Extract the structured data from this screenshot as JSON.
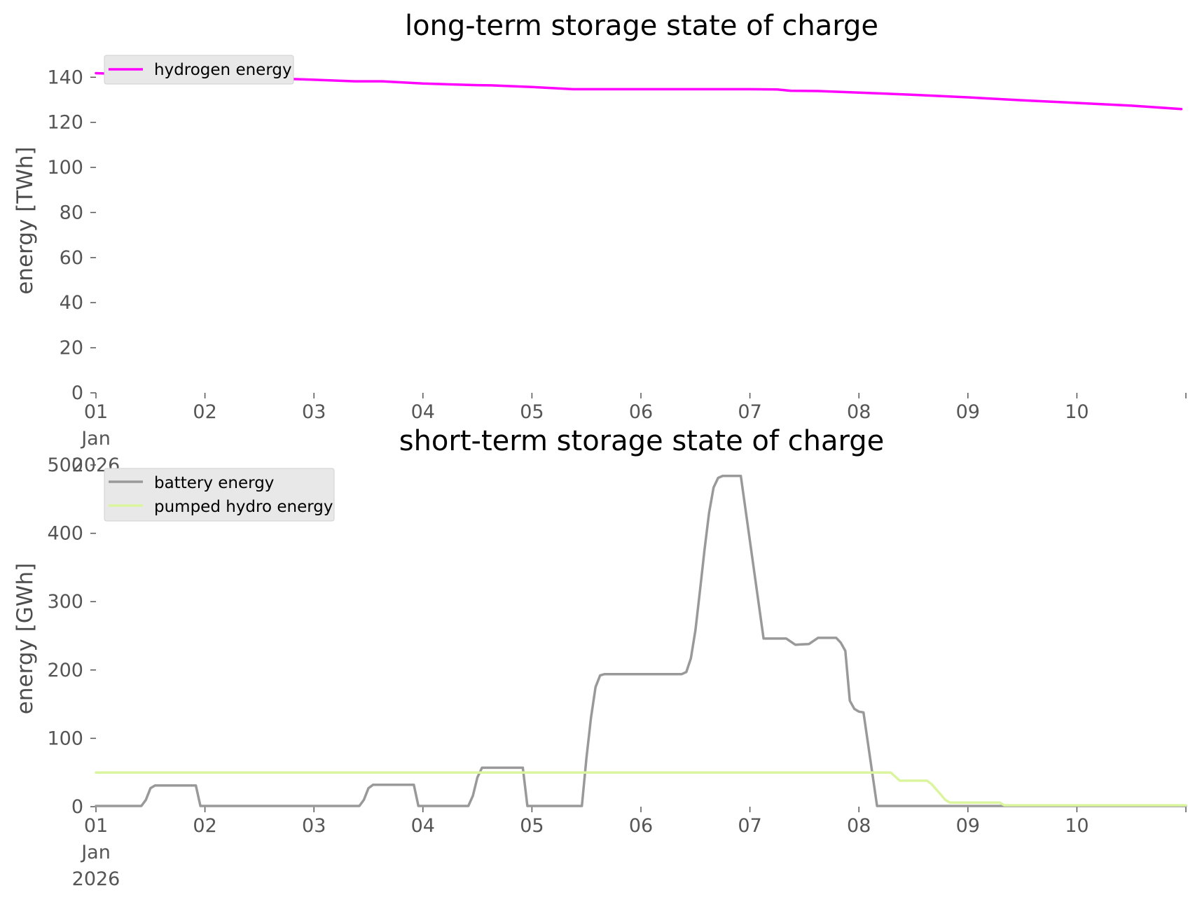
{
  "chart_data": [
    {
      "type": "line",
      "title": "long-term storage state of charge",
      "xlabel": "",
      "ylabel": "energy [TWh]",
      "xlim": [
        "2026-01-01",
        "2026-01-11"
      ],
      "ylim": [
        0,
        146
      ],
      "y_ticks": [
        0,
        20,
        40,
        60,
        80,
        100,
        120,
        140
      ],
      "x_ticks": [
        "2026-01-01",
        "2026-01-02",
        "2026-01-03",
        "2026-01-04",
        "2026-01-05",
        "2026-01-06",
        "2026-01-07",
        "2026-01-08",
        "2026-01-09",
        "2026-01-10",
        "2026-01-11"
      ],
      "x_tick_labels": [
        "01\nJan\n2026",
        "02",
        "03",
        "04",
        "05",
        "06",
        "07",
        "08",
        "09",
        "10",
        ""
      ],
      "grid": false,
      "legend_position": "upper left",
      "series": [
        {
          "name": "hydrogen energy",
          "color": "#ff00ff",
          "points": [
            [
              "2026-01-01 00:00",
              141.8
            ],
            [
              "2026-01-01 12:00",
              141.0
            ],
            [
              "2026-01-02 00:00",
              140.3
            ],
            [
              "2026-01-02 12:00",
              139.7
            ],
            [
              "2026-01-03 00:00",
              138.9
            ],
            [
              "2026-01-03 09:00",
              138.2
            ],
            [
              "2026-01-03 15:00",
              138.2
            ],
            [
              "2026-01-04 00:00",
              137.2
            ],
            [
              "2026-01-04 12:00",
              136.5
            ],
            [
              "2026-01-04 15:00",
              136.4
            ],
            [
              "2026-01-05 00:00",
              135.7
            ],
            [
              "2026-01-05 09:00",
              134.7
            ],
            [
              "2026-01-06 00:00",
              134.7
            ],
            [
              "2026-01-06 12:00",
              134.7
            ],
            [
              "2026-01-07 00:00",
              134.7
            ],
            [
              "2026-01-07 06:00",
              134.6
            ],
            [
              "2026-01-07 09:00",
              134.0
            ],
            [
              "2026-01-07 15:00",
              133.9
            ],
            [
              "2026-01-08 00:00",
              133.2
            ],
            [
              "2026-01-08 12:00",
              132.2
            ],
            [
              "2026-01-09 00:00",
              131.1
            ],
            [
              "2026-01-09 12:00",
              129.8
            ],
            [
              "2026-01-10 00:00",
              128.6
            ],
            [
              "2026-01-10 12:00",
              127.4
            ],
            [
              "2026-01-10 23:00",
              125.9
            ]
          ]
        }
      ]
    },
    {
      "type": "line",
      "title": "short-term storage state of charge",
      "xlabel": "",
      "ylabel": "energy [GWh]",
      "xlim": [
        "2026-01-01",
        "2026-01-11"
      ],
      "ylim": [
        0,
        500
      ],
      "y_ticks": [
        0,
        100,
        200,
        300,
        400,
        500
      ],
      "x_ticks": [
        "2026-01-01",
        "2026-01-02",
        "2026-01-03",
        "2026-01-04",
        "2026-01-05",
        "2026-01-06",
        "2026-01-07",
        "2026-01-08",
        "2026-01-09",
        "2026-01-10",
        "2026-01-11"
      ],
      "x_tick_labels": [
        "01\nJan\n2026",
        "02",
        "03",
        "04",
        "05",
        "06",
        "07",
        "08",
        "09",
        "10",
        ""
      ],
      "grid": false,
      "legend_position": "upper left",
      "series": [
        {
          "name": "battery energy",
          "color": "#999999",
          "points": [
            [
              "2026-01-01 00:00",
              1
            ],
            [
              "2026-01-01 10:00",
              1
            ],
            [
              "2026-01-01 11:00",
              10
            ],
            [
              "2026-01-01 12:00",
              27
            ],
            [
              "2026-01-01 13:00",
              31
            ],
            [
              "2026-01-01 22:00",
              31
            ],
            [
              "2026-01-01 23:00",
              1
            ],
            [
              "2026-01-03 10:00",
              1
            ],
            [
              "2026-01-03 11:00",
              10
            ],
            [
              "2026-01-03 12:00",
              27
            ],
            [
              "2026-01-03 13:00",
              32
            ],
            [
              "2026-01-03 22:00",
              32
            ],
            [
              "2026-01-03 23:00",
              1
            ],
            [
              "2026-01-04 10:00",
              1
            ],
            [
              "2026-01-04 11:00",
              16
            ],
            [
              "2026-01-04 12:00",
              43
            ],
            [
              "2026-01-04 13:00",
              57
            ],
            [
              "2026-01-04 22:00",
              57
            ],
            [
              "2026-01-04 23:00",
              1
            ],
            [
              "2026-01-05 11:00",
              1
            ],
            [
              "2026-01-05 12:00",
              71
            ],
            [
              "2026-01-05 13:00",
              130
            ],
            [
              "2026-01-05 14:00",
              175
            ],
            [
              "2026-01-05 15:00",
              192
            ],
            [
              "2026-01-05 16:00",
              194
            ],
            [
              "2026-01-06 09:00",
              194
            ],
            [
              "2026-01-06 10:00",
              197
            ],
            [
              "2026-01-06 11:00",
              217
            ],
            [
              "2026-01-06 12:00",
              258
            ],
            [
              "2026-01-06 13:00",
              316
            ],
            [
              "2026-01-06 14:00",
              376
            ],
            [
              "2026-01-06 15:00",
              430
            ],
            [
              "2026-01-06 16:00",
              467
            ],
            [
              "2026-01-06 17:00",
              481
            ],
            [
              "2026-01-06 18:00",
              484
            ],
            [
              "2026-01-06 22:00",
              484
            ],
            [
              "2026-01-07 03:00",
              246
            ],
            [
              "2026-01-07 08:00",
              246
            ],
            [
              "2026-01-07 10:00",
              237
            ],
            [
              "2026-01-07 13:00",
              238
            ],
            [
              "2026-01-07 15:00",
              247
            ],
            [
              "2026-01-07 19:00",
              247
            ],
            [
              "2026-01-07 20:00",
              240
            ],
            [
              "2026-01-07 21:00",
              228
            ],
            [
              "2026-01-07 22:00",
              155
            ],
            [
              "2026-01-07 23:00",
              143
            ],
            [
              "2026-01-08 00:00",
              139
            ],
            [
              "2026-01-08 01:00",
              138
            ],
            [
              "2026-01-08 04:00",
              1
            ],
            [
              "2026-01-11 00:00",
              1
            ]
          ]
        },
        {
          "name": "pumped hydro energy",
          "color": "#dbf59f",
          "points": [
            [
              "2026-01-01 00:00",
              50
            ],
            [
              "2026-01-08 06:00",
              50
            ],
            [
              "2026-01-08 07:00",
              50
            ],
            [
              "2026-01-08 09:00",
              38
            ],
            [
              "2026-01-08 15:00",
              38
            ],
            [
              "2026-01-08 16:00",
              33
            ],
            [
              "2026-01-08 18:00",
              18
            ],
            [
              "2026-01-08 19:00",
              10
            ],
            [
              "2026-01-08 20:00",
              6
            ],
            [
              "2026-01-09 07:00",
              6
            ],
            [
              "2026-01-09 08:00",
              2
            ],
            [
              "2026-01-11 00:00",
              2
            ]
          ]
        }
      ]
    }
  ]
}
